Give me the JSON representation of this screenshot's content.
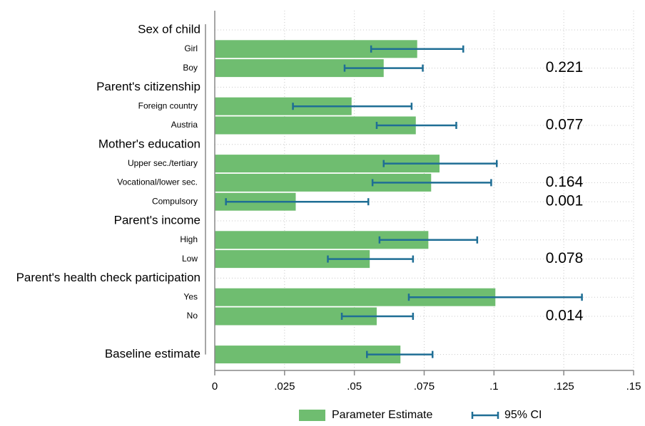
{
  "colors": {
    "bar": "#6fbd70",
    "ci": "#1f6e95",
    "grid": "#c8c8c8",
    "axis": "#888888"
  },
  "chart_data": {
    "type": "bar",
    "orientation": "horizontal",
    "xlim": [
      0,
      0.15
    ],
    "xticks": [
      0,
      0.025,
      0.05,
      0.075,
      0.1,
      0.125,
      0.15
    ],
    "xtick_labels": [
      "0",
      ".025",
      ".05",
      ".075",
      ".1",
      ".125",
      ".15"
    ],
    "grid": true,
    "legend_placement": "bottom",
    "legend": [
      "Parameter Estimate",
      "95% CI"
    ],
    "groups": [
      {
        "label": "Sex of child",
        "pvalue": "0.221",
        "items": [
          {
            "label": "Girl",
            "estimate": 0.0725,
            "ci": [
              0.056,
              0.089
            ]
          },
          {
            "label": "Boy",
            "estimate": 0.0605,
            "ci": [
              0.0465,
              0.0745
            ]
          }
        ]
      },
      {
        "label": "Parent's citizenship",
        "pvalue": "0.077",
        "items": [
          {
            "label": "Foreign country",
            "estimate": 0.049,
            "ci": [
              0.028,
              0.0705
            ]
          },
          {
            "label": "Austria",
            "estimate": 0.072,
            "ci": [
              0.058,
              0.0865
            ]
          }
        ]
      },
      {
        "label": "Mother's education",
        "pvalue": "0.164",
        "items": [
          {
            "label": "Upper sec./tertiary",
            "estimate": 0.0805,
            "ci": [
              0.0605,
              0.101
            ]
          },
          {
            "label": "Vocational/lower sec.",
            "estimate": 0.0775,
            "ci": [
              0.0565,
              0.099
            ]
          },
          {
            "label": "Compulsory",
            "estimate": 0.029,
            "ci": [
              0.004,
              0.055
            ],
            "pvalue": "0.001"
          }
        ]
      },
      {
        "label": "Parent's income",
        "pvalue": "0.078",
        "items": [
          {
            "label": "High",
            "estimate": 0.0765,
            "ci": [
              0.059,
              0.094
            ]
          },
          {
            "label": "Low",
            "estimate": 0.0555,
            "ci": [
              0.0405,
              0.071
            ]
          }
        ]
      },
      {
        "label": "Parent's health check participation",
        "pvalue": "0.014",
        "items": [
          {
            "label": "Yes",
            "estimate": 0.1005,
            "ci": [
              0.0695,
              0.1315
            ]
          },
          {
            "label": "No",
            "estimate": 0.058,
            "ci": [
              0.0455,
              0.071
            ]
          }
        ]
      }
    ],
    "baseline": {
      "label": "Baseline estimate",
      "estimate": 0.0665,
      "ci": [
        0.0545,
        0.078
      ]
    }
  }
}
